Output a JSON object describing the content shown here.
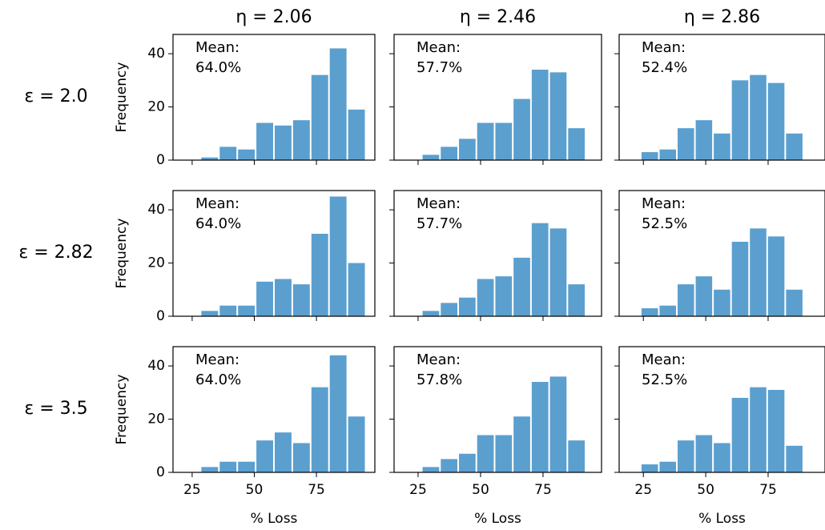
{
  "column_titles": [
    "η = 2.06",
    "η = 2.46",
    "η = 2.86"
  ],
  "row_labels": [
    "ε = 2.0",
    "ε = 2.82",
    "ε = 3.5"
  ],
  "chart_data": [
    {
      "type": "histogram",
      "row": 0,
      "col": 0,
      "ylabel": "Frequency",
      "annotation": [
        "Mean:",
        "64.0%"
      ],
      "color": "#5b9fcf",
      "bins": [
        21,
        28.38,
        35.76,
        43.14,
        50.52,
        57.9,
        65.28,
        72.66,
        80.04,
        87.42,
        94.8
      ],
      "values": [
        0,
        1,
        5,
        4,
        14,
        13,
        15,
        32,
        42,
        19
      ],
      "xlim": [
        17.3,
        98.5
      ],
      "xticks": [
        25,
        50,
        75
      ],
      "ylim": [
        0,
        47.25
      ],
      "yticks": [
        0,
        20,
        40
      ]
    },
    {
      "type": "histogram",
      "row": 0,
      "col": 1,
      "annotation": [
        "Mean:",
        "57.7%"
      ],
      "color": "#5b9fcf",
      "bins": [
        19.2,
        26.48,
        33.76,
        41.04,
        48.32,
        55.6,
        62.88,
        70.16,
        77.44,
        84.72,
        92
      ],
      "values": [
        0,
        2,
        5,
        8,
        14,
        14,
        23,
        34,
        33,
        12
      ],
      "xlim": [
        15.4,
        98.4
      ],
      "xticks": [
        25,
        50,
        75
      ],
      "ylim": [
        0,
        47.25
      ],
      "yticks": [
        0,
        20,
        40
      ]
    },
    {
      "type": "histogram",
      "row": 0,
      "col": 2,
      "annotation": [
        "Mean:",
        "52.4%"
      ],
      "color": "#5b9fcf",
      "bins": [
        16.7,
        23.94,
        31.18,
        38.42,
        45.66,
        52.9,
        60.14,
        67.38,
        74.62,
        81.86,
        89.1
      ],
      "values": [
        0,
        3,
        4,
        12,
        15,
        10,
        30,
        32,
        29,
        10
      ],
      "xlim": [
        15.3,
        97.8
      ],
      "xticks": [
        25,
        50,
        75
      ],
      "ylim": [
        0,
        47.25
      ],
      "yticks": [
        0,
        20,
        40
      ]
    },
    {
      "type": "histogram",
      "row": 1,
      "col": 0,
      "ylabel": "Frequency",
      "annotation": [
        "Mean:",
        "64.0%"
      ],
      "color": "#5b9fcf",
      "bins": [
        21,
        28.38,
        35.76,
        43.14,
        50.52,
        57.9,
        65.28,
        72.66,
        80.04,
        87.42,
        94.8
      ],
      "values": [
        0,
        2,
        4,
        4,
        13,
        14,
        12,
        31,
        45,
        20
      ],
      "xlim": [
        17.3,
        98.5
      ],
      "xticks": [
        25,
        50,
        75
      ],
      "ylim": [
        0,
        47.25
      ],
      "yticks": [
        0,
        20,
        40
      ]
    },
    {
      "type": "histogram",
      "row": 1,
      "col": 1,
      "annotation": [
        "Mean:",
        "57.7%"
      ],
      "color": "#5b9fcf",
      "bins": [
        19.2,
        26.48,
        33.76,
        41.04,
        48.32,
        55.6,
        62.88,
        70.16,
        77.44,
        84.72,
        92
      ],
      "values": [
        0,
        2,
        5,
        7,
        14,
        15,
        22,
        35,
        33,
        12
      ],
      "xlim": [
        15.4,
        98.4
      ],
      "xticks": [
        25,
        50,
        75
      ],
      "ylim": [
        0,
        47.25
      ],
      "yticks": [
        0,
        20,
        40
      ]
    },
    {
      "type": "histogram",
      "row": 1,
      "col": 2,
      "annotation": [
        "Mean:",
        "52.5%"
      ],
      "color": "#5b9fcf",
      "bins": [
        16.7,
        23.94,
        31.18,
        38.42,
        45.66,
        52.9,
        60.14,
        67.38,
        74.62,
        81.86,
        89.1
      ],
      "values": [
        0,
        3,
        4,
        12,
        15,
        10,
        28,
        33,
        30,
        10
      ],
      "xlim": [
        15.3,
        97.8
      ],
      "xticks": [
        25,
        50,
        75
      ],
      "ylim": [
        0,
        47.25
      ],
      "yticks": [
        0,
        20,
        40
      ]
    },
    {
      "type": "histogram",
      "row": 2,
      "col": 0,
      "ylabel": "Frequency",
      "xlabel": "% Loss",
      "annotation": [
        "Mean:",
        "64.0%"
      ],
      "color": "#5b9fcf",
      "bins": [
        21,
        28.38,
        35.76,
        43.14,
        50.52,
        57.9,
        65.28,
        72.66,
        80.04,
        87.42,
        94.8
      ],
      "values": [
        0,
        2,
        4,
        4,
        12,
        15,
        11,
        32,
        44,
        21
      ],
      "xlim": [
        17.3,
        98.5
      ],
      "xticks": [
        25,
        50,
        75
      ],
      "ylim": [
        0,
        47.25
      ],
      "yticks": [
        0,
        20,
        40
      ]
    },
    {
      "type": "histogram",
      "row": 2,
      "col": 1,
      "xlabel": "% Loss",
      "annotation": [
        "Mean:",
        "57.8%"
      ],
      "color": "#5b9fcf",
      "bins": [
        19.2,
        26.48,
        33.76,
        41.04,
        48.32,
        55.6,
        62.88,
        70.16,
        77.44,
        84.72,
        92
      ],
      "values": [
        0,
        2,
        5,
        7,
        14,
        14,
        21,
        34,
        36,
        12
      ],
      "xlim": [
        15.4,
        98.4
      ],
      "xticks": [
        25,
        50,
        75
      ],
      "ylim": [
        0,
        47.25
      ],
      "yticks": [
        0,
        20,
        40
      ]
    },
    {
      "type": "histogram",
      "row": 2,
      "col": 2,
      "xlabel": "% Loss",
      "annotation": [
        "Mean:",
        "52.5%"
      ],
      "color": "#5b9fcf",
      "bins": [
        16.7,
        23.94,
        31.18,
        38.42,
        45.66,
        52.9,
        60.14,
        67.38,
        74.62,
        81.86,
        89.1
      ],
      "values": [
        0,
        3,
        4,
        12,
        14,
        11,
        28,
        32,
        31,
        10
      ],
      "xlim": [
        15.3,
        97.8
      ],
      "xticks": [
        25,
        50,
        75
      ],
      "ylim": [
        0,
        47.25
      ],
      "yticks": [
        0,
        20,
        40
      ]
    }
  ]
}
